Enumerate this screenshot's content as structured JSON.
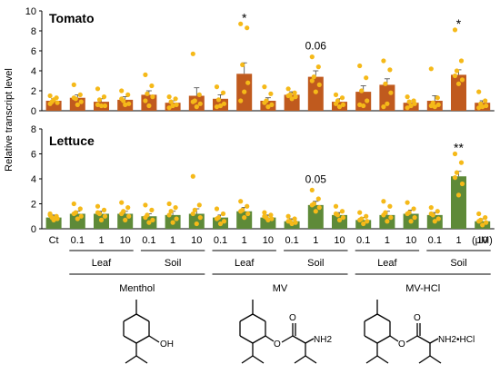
{
  "figure": {
    "ylabel": "Relative transcript level",
    "unit_label": "(μM)",
    "x_tick_labels": [
      "Ct",
      "0.1",
      "1",
      "10",
      "0.1",
      "1",
      "10",
      "0.1",
      "1",
      "10",
      "0.1",
      "1",
      "10",
      "0.1",
      "1",
      "10",
      "0.1",
      "1",
      "10"
    ],
    "application_labels": [
      "Leaf",
      "Soil",
      "Leaf",
      "Soil",
      "Leaf",
      "Soil"
    ],
    "compound_labels": [
      "Menthol",
      "MV",
      "MV-HCl"
    ],
    "structure_labels": {
      "menthol_oh": "OH",
      "mv_amine": "NH2",
      "mvhcl_amine": "NH2•HCl"
    }
  },
  "colors": {
    "tomato_bar": "#C05A1E",
    "lettuce_bar": "#5E8A38",
    "dot": "#F5B919",
    "axis": "#000000"
  },
  "chart_data": [
    {
      "type": "bar",
      "title": "Tomato",
      "ylim": [
        0,
        10
      ],
      "yticks": [
        0,
        2,
        4,
        6,
        8,
        10
      ],
      "values": [
        1.0,
        1.3,
        0.9,
        1.1,
        1.6,
        0.8,
        1.5,
        1.2,
        3.7,
        1.0,
        1.6,
        3.4,
        0.9,
        1.9,
        2.6,
        0.8,
        1.0,
        3.6,
        0.8
      ],
      "errors": [
        0.2,
        0.3,
        0.3,
        0.3,
        0.4,
        0.2,
        0.8,
        0.4,
        1.1,
        0.3,
        0.3,
        0.6,
        0.3,
        0.6,
        0.6,
        0.2,
        0.5,
        0.5,
        0.2
      ],
      "points": [
        [
          1.5,
          1.3,
          0.9,
          0.8,
          1.1,
          0.7
        ],
        [
          2.6,
          1.6,
          1.2,
          0.9,
          0.6,
          1.3
        ],
        [
          2.2,
          1.4,
          1.1,
          0.5,
          0.5,
          0.6
        ],
        [
          2.0,
          1.6,
          1.0,
          0.7,
          0.6,
          1.2
        ],
        [
          3.6,
          2.5,
          1.7,
          1.4,
          0.5,
          1.0
        ],
        [
          1.4,
          1.2,
          0.9,
          0.6,
          0.5,
          0.3
        ],
        [
          5.7,
          1.6,
          1.0,
          0.7,
          0.4,
          0.9
        ],
        [
          2.4,
          1.8,
          1.1,
          0.7,
          0.5,
          0.4
        ],
        [
          8.7,
          8.3,
          4.6,
          2.8,
          1.9,
          1.0
        ],
        [
          2.4,
          1.7,
          1.0,
          0.6,
          0.4,
          0.8
        ],
        [
          2.2,
          1.8,
          1.6,
          1.4,
          1.2,
          1.5
        ],
        [
          5.4,
          4.4,
          3.4,
          2.6,
          1.9,
          3.0
        ],
        [
          1.6,
          1.3,
          1.0,
          0.6,
          0.4,
          0.7
        ],
        [
          4.5,
          3.3,
          2.0,
          1.0,
          0.5,
          0.6
        ],
        [
          5.0,
          4.1,
          2.7,
          1.8,
          0.7,
          0.4
        ],
        [
          1.4,
          1.0,
          0.9,
          0.7,
          0.5,
          0.3
        ],
        [
          4.2,
          1.3,
          0.8,
          0.6,
          0.4,
          0.5
        ],
        [
          8.1,
          5.0,
          4.0,
          3.1,
          2.7,
          3.5
        ],
        [
          1.9,
          1.0,
          0.7,
          0.5,
          0.4,
          0.3
        ]
      ],
      "annotations": [
        {
          "index": 8,
          "text": "*"
        },
        {
          "index": 11,
          "text": "0.06"
        },
        {
          "index": 17,
          "text": "*"
        }
      ]
    },
    {
      "type": "bar",
      "title": "Lettuce",
      "ylim": [
        0,
        8
      ],
      "yticks": [
        0,
        2,
        4,
        6,
        8
      ],
      "values": [
        0.9,
        1.2,
        1.2,
        1.2,
        1.0,
        1.1,
        1.2,
        0.9,
        1.4,
        0.9,
        0.6,
        1.9,
        1.1,
        0.7,
        1.1,
        1.2,
        1.1,
        4.2,
        0.6
      ],
      "errors": [
        0.2,
        0.2,
        0.2,
        0.2,
        0.2,
        0.3,
        0.4,
        0.2,
        0.3,
        0.2,
        0.2,
        0.3,
        0.2,
        0.2,
        0.3,
        0.3,
        0.2,
        0.4,
        0.2
      ],
      "points": [
        [
          1.2,
          1.0,
          0.9,
          0.8,
          0.7,
          1.1
        ],
        [
          2.0,
          1.6,
          1.3,
          1.0,
          0.8,
          1.2
        ],
        [
          1.8,
          1.5,
          1.2,
          1.0,
          0.7,
          1.3
        ],
        [
          2.1,
          1.7,
          1.4,
          1.0,
          0.7,
          1.2
        ],
        [
          1.9,
          1.5,
          1.1,
          0.7,
          0.5,
          0.9
        ],
        [
          2.0,
          1.7,
          1.4,
          0.8,
          0.5,
          1.1
        ],
        [
          4.2,
          1.9,
          1.5,
          0.9,
          0.4,
          1.2
        ],
        [
          1.6,
          1.2,
          0.9,
          0.6,
          0.4,
          0.8
        ],
        [
          2.2,
          1.8,
          1.5,
          1.2,
          0.9,
          1.4
        ],
        [
          1.3,
          1.1,
          0.9,
          0.8,
          0.7,
          1.0
        ],
        [
          1.0,
          0.8,
          0.6,
          0.5,
          0.4,
          0.6
        ],
        [
          3.1,
          2.4,
          2.0,
          1.7,
          1.4,
          1.9
        ],
        [
          1.8,
          1.4,
          1.1,
          0.9,
          0.7,
          1.2
        ],
        [
          1.3,
          1.0,
          0.8,
          0.6,
          0.4,
          0.7
        ],
        [
          2.2,
          1.8,
          1.3,
          0.9,
          0.6,
          1.1
        ],
        [
          2.1,
          1.6,
          1.3,
          0.9,
          0.6,
          1.2
        ],
        [
          1.7,
          1.4,
          1.1,
          0.8,
          0.6,
          1.2
        ],
        [
          6.0,
          5.3,
          4.5,
          3.6,
          2.7,
          4.1
        ],
        [
          1.2,
          0.9,
          0.7,
          0.5,
          0.3,
          0.6
        ]
      ],
      "annotations": [
        {
          "index": 11,
          "text": "0.05"
        },
        {
          "index": 17,
          "text": "**"
        }
      ]
    }
  ]
}
